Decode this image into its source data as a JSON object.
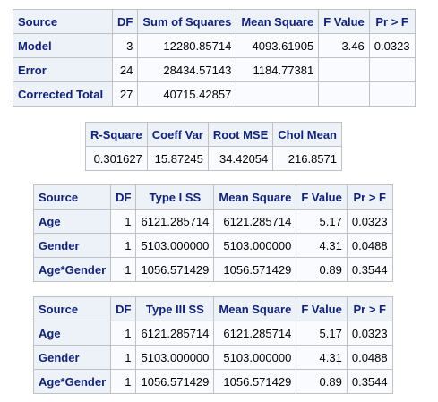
{
  "anova": {
    "headers": [
      "Source",
      "DF",
      "Sum of Squares",
      "Mean Square",
      "F Value",
      "Pr > F"
    ],
    "rows": [
      {
        "source": "Model",
        "df": "3",
        "ss": "12280.85714",
        "ms": "4093.61905",
        "f": "3.46",
        "p": "0.0323"
      },
      {
        "source": "Error",
        "df": "24",
        "ss": "28434.57143",
        "ms": "1184.77381",
        "f": "",
        "p": ""
      },
      {
        "source": "Corrected Total",
        "df": "27",
        "ss": "40715.42857",
        "ms": "",
        "f": "",
        "p": ""
      }
    ]
  },
  "fit": {
    "headers": [
      "R-Square",
      "Coeff Var",
      "Root MSE",
      "Chol Mean"
    ],
    "values": [
      "0.301627",
      "15.87245",
      "34.42054",
      "216.8571"
    ]
  },
  "type1": {
    "headers": [
      "Source",
      "DF",
      "Type I SS",
      "Mean Square",
      "F Value",
      "Pr > F"
    ],
    "rows": [
      {
        "source": "Age",
        "df": "1",
        "ss": "6121.285714",
        "ms": "6121.285714",
        "f": "5.17",
        "p": "0.0323"
      },
      {
        "source": "Gender",
        "df": "1",
        "ss": "5103.000000",
        "ms": "5103.000000",
        "f": "4.31",
        "p": "0.0488"
      },
      {
        "source": "Age*Gender",
        "df": "1",
        "ss": "1056.571429",
        "ms": "1056.571429",
        "f": "0.89",
        "p": "0.3544"
      }
    ]
  },
  "type3": {
    "headers": [
      "Source",
      "DF",
      "Type III SS",
      "Mean Square",
      "F Value",
      "Pr > F"
    ],
    "rows": [
      {
        "source": "Age",
        "df": "1",
        "ss": "6121.285714",
        "ms": "6121.285714",
        "f": "5.17",
        "p": "0.0323"
      },
      {
        "source": "Gender",
        "df": "1",
        "ss": "5103.000000",
        "ms": "5103.000000",
        "f": "4.31",
        "p": "0.0488"
      },
      {
        "source": "Age*Gender",
        "df": "1",
        "ss": "1056.571429",
        "ms": "1056.571429",
        "f": "0.89",
        "p": "0.3544"
      }
    ]
  }
}
